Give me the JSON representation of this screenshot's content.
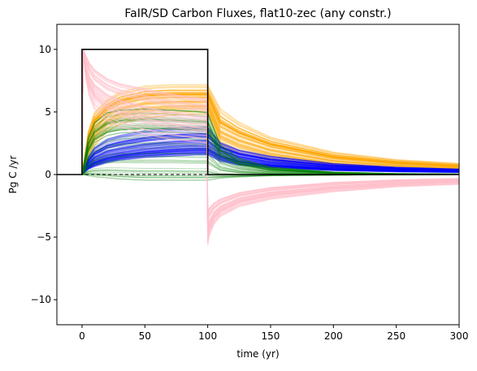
{
  "chart_data": {
    "type": "line",
    "title": "FaIR/SD Carbon Fluxes, flat10-zec (any constr.)",
    "xlabel": "time (yr)",
    "ylabel": "Pg C /yr",
    "xlim": [
      -20,
      300
    ],
    "ylim": [
      -12,
      12
    ],
    "xticks": [
      0,
      50,
      100,
      150,
      200,
      250,
      300
    ],
    "yticks": [
      -10,
      -5,
      0,
      5,
      10
    ],
    "grid": false,
    "legend": "none",
    "reference_line": {
      "y": 0,
      "style": "dashed",
      "color": "#000000"
    },
    "emission_forcing": {
      "color": "#000000",
      "x": [
        -20,
        0,
        0,
        100,
        100,
        300
      ],
      "y": [
        0,
        0,
        10,
        10,
        0,
        0
      ]
    },
    "series": [
      {
        "color": "#ffa500",
        "ensemble_members": 70,
        "x": [
          0,
          5,
          10,
          20,
          30,
          50,
          70,
          90,
          100,
          110,
          125,
          150,
          200,
          250,
          300
        ],
        "y_median": [
          0.0,
          2.6,
          3.9,
          5.0,
          5.5,
          5.9,
          6.0,
          6.0,
          6.0,
          3.6,
          2.9,
          2.1,
          1.2,
          0.8,
          0.55
        ],
        "y_low": [
          0.0,
          1.3,
          2.3,
          3.4,
          4.0,
          4.5,
          4.7,
          4.8,
          4.8,
          2.4,
          1.7,
          1.1,
          0.5,
          0.3,
          0.2
        ],
        "y_high": [
          0.0,
          3.5,
          5.0,
          6.0,
          6.6,
          7.1,
          7.2,
          7.2,
          7.2,
          5.3,
          4.2,
          3.0,
          1.8,
          1.2,
          0.9
        ]
      },
      {
        "color": "#0000ff",
        "ensemble_members": 70,
        "x": [
          0,
          5,
          10,
          20,
          30,
          50,
          70,
          90,
          100,
          110,
          125,
          150,
          200,
          250,
          300
        ],
        "y_median": [
          0.0,
          0.8,
          1.2,
          1.6,
          1.8,
          2.1,
          2.3,
          2.4,
          2.4,
          1.8,
          1.3,
          0.9,
          0.55,
          0.4,
          0.3
        ],
        "y_low": [
          0.0,
          0.4,
          0.6,
          0.9,
          1.1,
          1.3,
          1.4,
          1.5,
          1.5,
          1.0,
          0.7,
          0.5,
          0.3,
          0.2,
          0.15
        ],
        "y_high": [
          0.0,
          1.4,
          2.2,
          2.9,
          3.2,
          3.6,
          3.8,
          3.9,
          3.9,
          2.6,
          2.0,
          1.5,
          0.9,
          0.6,
          0.45
        ]
      },
      {
        "color": "#008000",
        "ensemble_members": 55,
        "x": [
          0,
          5,
          10,
          20,
          30,
          50,
          70,
          90,
          100,
          110,
          125,
          150,
          200,
          250,
          300
        ],
        "y_median": [
          0.0,
          1.5,
          2.2,
          2.7,
          2.9,
          3.0,
          3.0,
          2.9,
          2.9,
          1.2,
          0.6,
          0.25,
          0.08,
          0.03,
          0.02
        ],
        "y_low": [
          0.0,
          -0.1,
          -0.2,
          -0.3,
          -0.4,
          -0.5,
          -0.5,
          -0.5,
          -0.5,
          -0.3,
          -0.2,
          -0.1,
          -0.05,
          -0.02,
          0.0
        ],
        "y_high": [
          0.0,
          3.0,
          4.2,
          5.0,
          5.2,
          5.3,
          5.2,
          5.1,
          5.0,
          2.4,
          1.3,
          0.6,
          0.2,
          0.08,
          0.04
        ]
      },
      {
        "color": "#ffc0cb",
        "ensemble_members": 70,
        "x": [
          0,
          1,
          3,
          6,
          10,
          20,
          30,
          50,
          70,
          90,
          99.5,
          100,
          101,
          105,
          110,
          125,
          150,
          200,
          250,
          300
        ],
        "y_median": [
          0.0,
          9.9,
          8.5,
          7.5,
          6.8,
          6.0,
          5.6,
          5.0,
          4.6,
          4.3,
          4.2,
          -4.5,
          -4.0,
          -3.2,
          -2.7,
          -2.0,
          -1.5,
          -1.0,
          -0.7,
          -0.5
        ],
        "y_low": [
          0.0,
          9.6,
          7.6,
          6.1,
          5.1,
          4.1,
          3.6,
          3.0,
          2.6,
          2.4,
          2.3,
          -5.7,
          -5.0,
          -4.0,
          -3.4,
          -2.6,
          -2.0,
          -1.4,
          -1.0,
          -0.8
        ],
        "y_high": [
          0.0,
          10.0,
          9.6,
          9.0,
          8.5,
          7.8,
          7.4,
          7.0,
          6.6,
          6.3,
          6.2,
          -2.9,
          -2.6,
          -2.2,
          -1.9,
          -1.4,
          -1.0,
          -0.6,
          -0.4,
          -0.3
        ]
      }
    ]
  }
}
